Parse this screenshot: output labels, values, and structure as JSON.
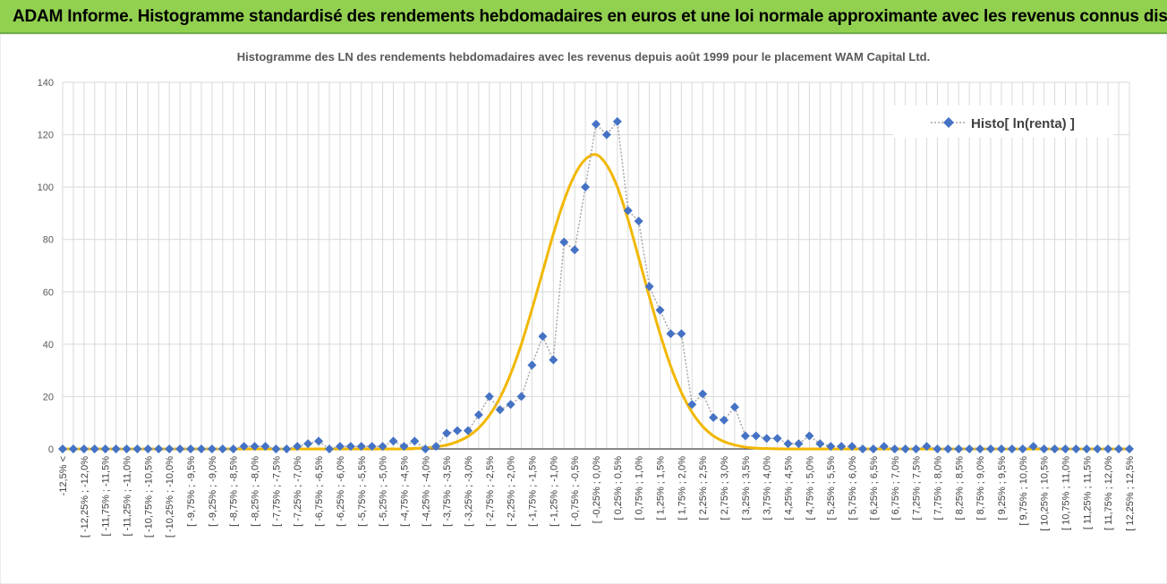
{
  "banner": {
    "title": "ADAM Informe. Histogramme standardisé des rendements hebdomadaires en euros et une loi normale approximante avec les revenus connus distribués"
  },
  "colors": {
    "banner_bg": "#92d050",
    "series_marker": "#4472c4",
    "series_line": "#a6a6a6",
    "normal_curve": "#f2b700",
    "grid": "#d9d9d9"
  },
  "chart_data": {
    "type": "line",
    "title": "Histogramme des LN des rendements hebdomadaires avec les revenus depuis août 1999 pour le placement WAM Capital Ltd.",
    "ylim": [
      0,
      140
    ],
    "yticks": [
      0,
      20,
      40,
      60,
      80,
      100,
      120,
      140
    ],
    "grid": "vertical and horizontal",
    "legend_position": "top-right",
    "categories": [
      "-12,5% <",
      "[ -12,25% ; -12,0%",
      "[ -11,75% ; -11,5%",
      "[ -11,25% ; -11,0%",
      "[ -10,75% ; -10,5%",
      "[ -10,25% ; -10,0%",
      "[ -9,75% ; -9,5%",
      "[ -9,25% ; -9,0%",
      "[ -8,75% ; -8,5%",
      "[ -8,25% ; -8,0%",
      "[ -7,75% ; -7,5%",
      "[ -7,25% ; -7,0%",
      "[ -6,75% ; -6,5%",
      "[ -6,25% ; -6,0%",
      "[ -5,75% ; -5,5%",
      "[ -5,25% ; -5,0%",
      "[ -4,75% ; -4,5%",
      "[ -4,25% ; -4,0%",
      "[ -3,75% ; -3,5%",
      "[ -3,25% ; -3,0%",
      "[ -2,75% ; -2,5%",
      "[ -2,25% ; -2,0%",
      "[ -1,75% ; -1,5%",
      "[ -1,25% ; -1,0%",
      "[ -0,75% ; -0,5%",
      "[ -0,25% ; 0,0%",
      "[ 0,25% ; 0,5%",
      "[ 0,75% ; 1,0%",
      "[ 1,25% ; 1,5%",
      "[ 1,75% ; 2,0%",
      "[ 2,25% ; 2,5%",
      "[ 2,75% ; 3,0%",
      "[ 3,25% ; 3,5%",
      "[ 3,75% ; 4,0%",
      "[ 4,25% ; 4,5%",
      "[ 4,75% ; 5,0%",
      "[ 5,25% ; 5,5%",
      "[ 5,75% ; 6,0%",
      "[ 6,25% ; 6,5%",
      "[ 6,75% ; 7,0%",
      "[ 7,25% ; 7,5%",
      "[ 7,75% ; 8,0%",
      "[ 8,25% ; 8,5%",
      "[ 8,75% ; 9,0%",
      "[ 9,25% ; 9,5%",
      "[ 9,75% ; 10,0%",
      "[ 10,25% ; 10,5%",
      "[ 10,75% ; 11,0%",
      "[ 11,25% ; 11,5%",
      "[ 11,75% ; 12,0%",
      "[ 12,25% ; 12,5%"
    ],
    "series": [
      {
        "name": "Histo[ ln(renta) ]",
        "style": "dotted line with diamond markers",
        "x": [
          -12.5,
          -12.25,
          -12.0,
          -11.75,
          -11.5,
          -11.25,
          -11.0,
          -10.75,
          -10.5,
          -10.25,
          -10.0,
          -9.75,
          -9.5,
          -9.25,
          -9.0,
          -8.75,
          -8.5,
          -8.25,
          -8.0,
          -7.75,
          -7.5,
          -7.25,
          -7.0,
          -6.75,
          -6.5,
          -6.25,
          -6.0,
          -5.75,
          -5.5,
          -5.25,
          -5.0,
          -4.75,
          -4.5,
          -4.25,
          -4.0,
          -3.75,
          -3.5,
          -3.25,
          -3.0,
          -2.75,
          -2.5,
          -2.25,
          -2.0,
          -1.75,
          -1.5,
          -1.25,
          -1.0,
          -0.75,
          -0.5,
          -0.25,
          0.0,
          0.25,
          0.5,
          0.75,
          1.0,
          1.25,
          1.5,
          1.75,
          2.0,
          2.25,
          2.5,
          2.75,
          3.0,
          3.25,
          3.5,
          3.75,
          4.0,
          4.25,
          4.5,
          4.75,
          5.0,
          5.25,
          5.5,
          5.75,
          6.0,
          6.25,
          6.5,
          6.75,
          7.0,
          7.25,
          7.5,
          7.75,
          8.0,
          8.25,
          8.5,
          8.75,
          9.0,
          9.25,
          9.5,
          9.75,
          10.0,
          10.25,
          10.5,
          10.75,
          11.0,
          11.25,
          11.5,
          11.75,
          12.0,
          12.25,
          12.5
        ],
        "values": [
          0,
          0,
          0,
          0,
          0,
          0,
          0,
          0,
          0,
          0,
          0,
          0,
          0,
          0,
          0,
          0,
          0,
          1,
          1,
          1,
          0,
          0,
          1,
          2,
          3,
          0,
          1,
          1,
          1,
          1,
          1,
          3,
          1,
          3,
          0,
          1,
          6,
          7,
          7,
          13,
          20,
          15,
          17,
          20,
          32,
          43,
          34,
          79,
          76,
          100,
          124,
          120,
          125,
          91,
          87,
          62,
          53,
          44,
          44,
          17,
          21,
          12,
          11,
          16,
          5,
          5,
          4,
          4,
          2,
          2,
          5,
          2,
          1,
          1,
          1,
          0,
          0,
          1,
          0,
          0,
          0,
          1,
          0,
          0,
          0,
          0,
          0,
          0,
          0,
          0,
          0,
          1,
          0,
          0,
          0,
          0,
          0,
          0,
          0,
          0,
          0
        ]
      },
      {
        "name": "",
        "style": "solid line",
        "x": [
          -12.5,
          -5.0,
          -4.5,
          -4.25,
          -4.0,
          -3.75,
          -3.5,
          -3.25,
          -3.0,
          -2.75,
          -2.5,
          -2.25,
          -2.0,
          -1.75,
          -1.5,
          -1.25,
          -1.0,
          -0.75,
          -0.5,
          -0.25,
          0.0,
          0.25,
          0.5,
          0.75,
          1.0,
          1.25,
          1.5,
          1.75,
          2.0,
          2.25,
          2.5,
          2.75,
          3.0,
          3.25,
          3.5,
          3.75,
          4.0,
          4.25,
          4.5,
          5.0,
          12.5
        ],
        "values": [
          0,
          0,
          0.1,
          0.2,
          0.4,
          0.8,
          1.5,
          2.8,
          4.8,
          8.0,
          12.8,
          19.6,
          28.7,
          40.0,
          53.4,
          67.7,
          82.1,
          94.8,
          104.6,
          110.6,
          112.4,
          108.4,
          100.0,
          87.6,
          73.0,
          58.1,
          44.0,
          31.6,
          21.6,
          14.0,
          8.6,
          5.0,
          2.8,
          1.5,
          0.7,
          0.3,
          0.15,
          0.06,
          0.02,
          0,
          0
        ]
      }
    ]
  }
}
